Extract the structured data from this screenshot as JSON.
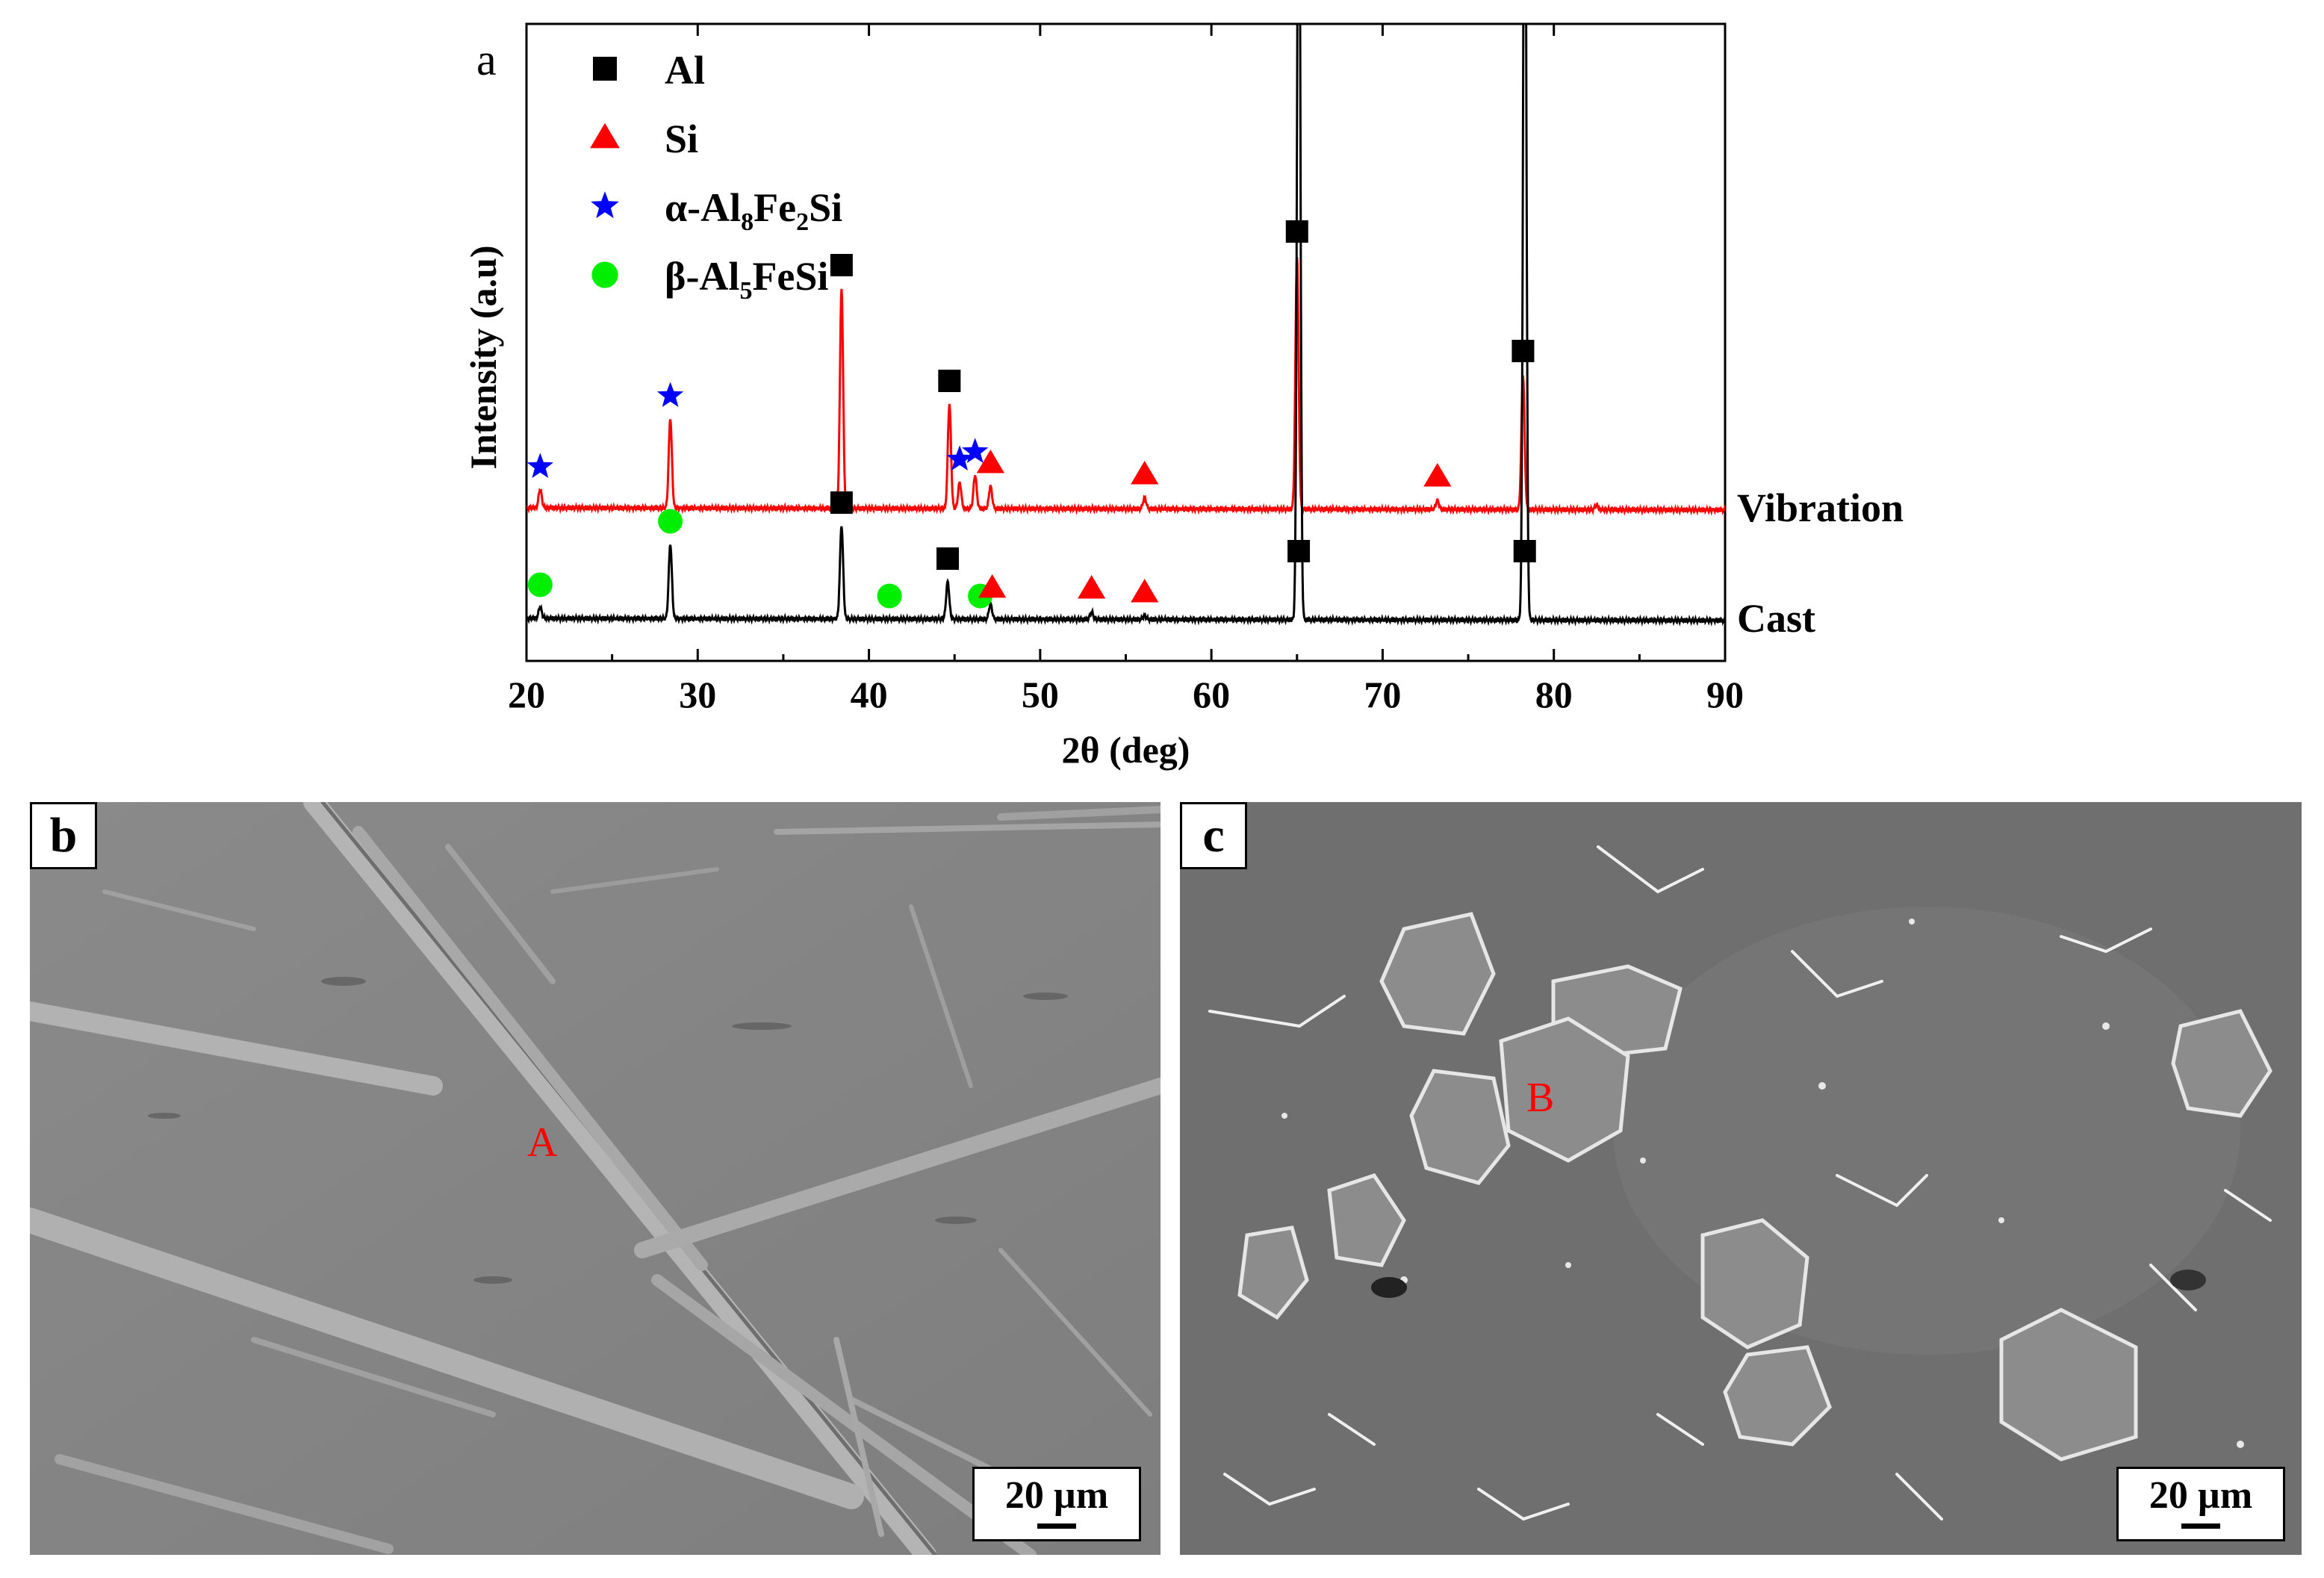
{
  "chart_data": {
    "type": "line",
    "panel_label": "a",
    "xlabel": "2θ (deg)",
    "ylabel": "Intensity (a.u)",
    "xlim": [
      20,
      90
    ],
    "xticks": [
      20,
      30,
      40,
      50,
      60,
      70,
      80,
      90
    ],
    "y_ticks_shown": false,
    "legend_position": "top-left",
    "legend": [
      {
        "marker": "square",
        "color": "#000000",
        "label": "Al"
      },
      {
        "marker": "triangle",
        "color": "#ff0000",
        "label": "Si"
      },
      {
        "marker": "star",
        "color": "#0000ff",
        "label": "α-Al",
        "sub1": "8",
        "mid": "Fe",
        "sub2": "2",
        "tail": "Si"
      },
      {
        "marker": "circle",
        "color": "#00ee00",
        "label": "β-Al",
        "sub1": "5",
        "mid": "FeSi",
        "sub2": "",
        "tail": ""
      }
    ],
    "series": [
      {
        "name": "Vibration",
        "color": "#ff0000",
        "baseline": 0.9,
        "peaks": [
          {
            "x": 20.8,
            "h": 0.25
          },
          {
            "x": 28.4,
            "h": 1.2
          },
          {
            "x": 38.4,
            "h": 2.95
          },
          {
            "x": 44.7,
            "h": 1.4
          },
          {
            "x": 45.3,
            "h": 0.35
          },
          {
            "x": 46.2,
            "h": 0.45
          },
          {
            "x": 47.1,
            "h": 0.3
          },
          {
            "x": 56.1,
            "h": 0.15
          },
          {
            "x": 65.0,
            "h": 3.4
          },
          {
            "x": 73.2,
            "h": 0.12
          },
          {
            "x": 78.2,
            "h": 1.8
          },
          {
            "x": 82.5,
            "h": 0.06
          }
        ],
        "markers": [
          {
            "x": 20.8,
            "type": "star"
          },
          {
            "x": 28.4,
            "type": "star"
          },
          {
            "x": 38.4,
            "type": "square"
          },
          {
            "x": 44.7,
            "type": "square"
          },
          {
            "x": 45.3,
            "type": "star"
          },
          {
            "x": 46.2,
            "type": "star"
          },
          {
            "x": 47.1,
            "type": "triangle"
          },
          {
            "x": 56.1,
            "type": "triangle"
          },
          {
            "x": 65.0,
            "type": "square"
          },
          {
            "x": 73.2,
            "type": "triangle"
          },
          {
            "x": 78.2,
            "type": "square"
          }
        ]
      },
      {
        "name": "Cast",
        "color": "#000000",
        "baseline": 0.0,
        "peaks": [
          {
            "x": 20.8,
            "h": 0.15
          },
          {
            "x": 28.4,
            "h": 1.0
          },
          {
            "x": 38.4,
            "h": 1.25
          },
          {
            "x": 44.6,
            "h": 0.5
          },
          {
            "x": 47.1,
            "h": 0.2
          },
          {
            "x": 53.0,
            "h": 0.1
          },
          {
            "x": 56.1,
            "h": 0.05
          },
          {
            "x": 65.1,
            "h": 12.0
          },
          {
            "x": 78.3,
            "h": 12.0
          }
        ],
        "markers": [
          {
            "x": 20.8,
            "type": "circle"
          },
          {
            "x": 28.4,
            "type": "circle"
          },
          {
            "x": 38.4,
            "type": "square"
          },
          {
            "x": 41.2,
            "type": "circle"
          },
          {
            "x": 44.6,
            "type": "square"
          },
          {
            "x": 46.5,
            "type": "circle"
          },
          {
            "x": 47.2,
            "type": "triangle"
          },
          {
            "x": 53.0,
            "type": "triangle"
          },
          {
            "x": 56.1,
            "type": "triangle"
          },
          {
            "x": 65.1,
            "type": "square"
          },
          {
            "x": 78.3,
            "type": "square"
          }
        ]
      }
    ],
    "colors": {
      "Al": "#000000",
      "Si": "#ff0000",
      "alpha": "#0000ff",
      "beta": "#00ee00"
    }
  },
  "panels": {
    "b": {
      "letter": "b",
      "point_label": "A",
      "scale_text": "20 µm"
    },
    "c": {
      "letter": "c",
      "point_label": "B",
      "scale_text": "20 µm"
    }
  }
}
